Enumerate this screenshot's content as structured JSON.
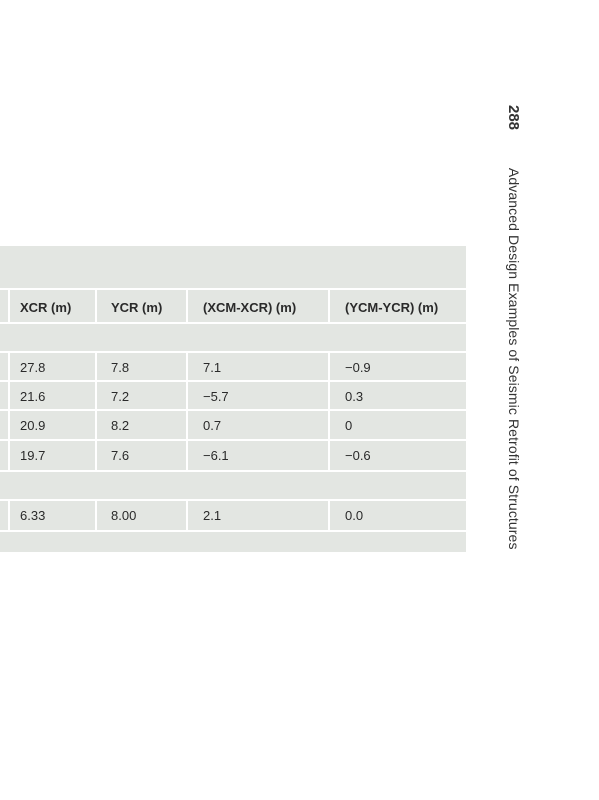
{
  "running_head": {
    "page_number": "288",
    "book_title": "Advanced Design Examples of Seismic Retrofit of Structures"
  },
  "table": {
    "headers": [
      "XCR (m)",
      "YCR (m)",
      "(XCM-XCR) (m)",
      "(YCM-YCR) (m)"
    ],
    "group_a_rows": [
      [
        "27.8",
        "7.8",
        "7.1",
        "−0.9"
      ],
      [
        "21.6",
        "7.2",
        "−5.7",
        "0.3"
      ],
      [
        "20.9",
        "8.2",
        "0.7",
        "0"
      ],
      [
        "19.7",
        "7.6",
        "−6.1",
        "−0.6"
      ]
    ],
    "group_b_rows": [
      [
        "6.33",
        "8.00",
        "2.1",
        "0.0"
      ]
    ]
  }
}
